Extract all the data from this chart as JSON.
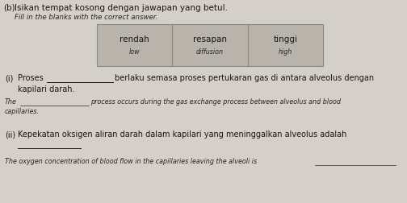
{
  "background_color": "#d4cfc8",
  "title_prefix": "(b)",
  "title_malay": "Isikan tempat kosong dengan jawapan yang betul.",
  "title_english": "Fill in the blanks with the correct answer.",
  "box_items": [
    {
      "malay": "rendah",
      "english": "low"
    },
    {
      "malay": "resapan",
      "english": "diffusion"
    },
    {
      "malay": "tinggi",
      "english": "high"
    }
  ],
  "box_bg": "#b8b4ac",
  "box_border": "#888880",
  "label_i": "(i)",
  "label_ii": "(ii)",
  "text_color": "#1a1510",
  "italic_color": "#2a2520",
  "fs_title": 7.5,
  "fs_italic_title": 6.2,
  "fs_body": 7.0,
  "fs_italic": 5.8
}
